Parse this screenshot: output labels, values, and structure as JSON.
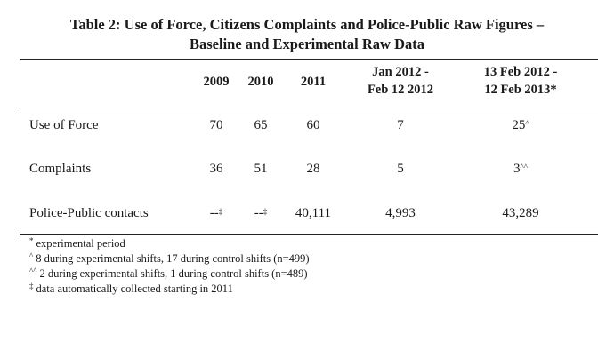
{
  "title": {
    "line1": "Table 2: Use of Force, Citizens Complaints and Police-Public Raw Figures –",
    "line2": "Baseline and Experimental Raw Data"
  },
  "columns": {
    "c2009": "2009",
    "c2010": "2010",
    "c2011": "2011",
    "c2012a_l1": "Jan 2012 -",
    "c2012a_l2": "Feb 12 2012",
    "c2012b_l1": "13 Feb 2012 -",
    "c2012b_l2": "12 Feb 2013*"
  },
  "rows": [
    {
      "label": "Use of Force",
      "v2009": "70",
      "v2010": "65",
      "v2011": "60",
      "v2012a": "7",
      "v2012b": "25",
      "v2012b_sup": "^"
    },
    {
      "label": "Complaints",
      "v2009": "36",
      "v2010": "51",
      "v2011": "28",
      "v2012a": "5",
      "v2012b": "3",
      "v2012b_sup": "^^"
    },
    {
      "label": "Police-Public contacts",
      "v2009": "--",
      "v2009_sup": "‡",
      "v2010": "--",
      "v2010_sup": "‡",
      "v2011": "40,111",
      "v2012a": "4,993",
      "v2012b": "43,289"
    }
  ],
  "notes": [
    {
      "mark": "*",
      "text": "experimental period"
    },
    {
      "mark": "^",
      "text": "8 during experimental shifts, 17 during control shifts (n=499)"
    },
    {
      "mark": "^^",
      "text": "2 during experimental shifts, 1 during control shifts (n=489)"
    },
    {
      "mark": "‡",
      "text": "data automatically collected starting in 2011"
    }
  ]
}
